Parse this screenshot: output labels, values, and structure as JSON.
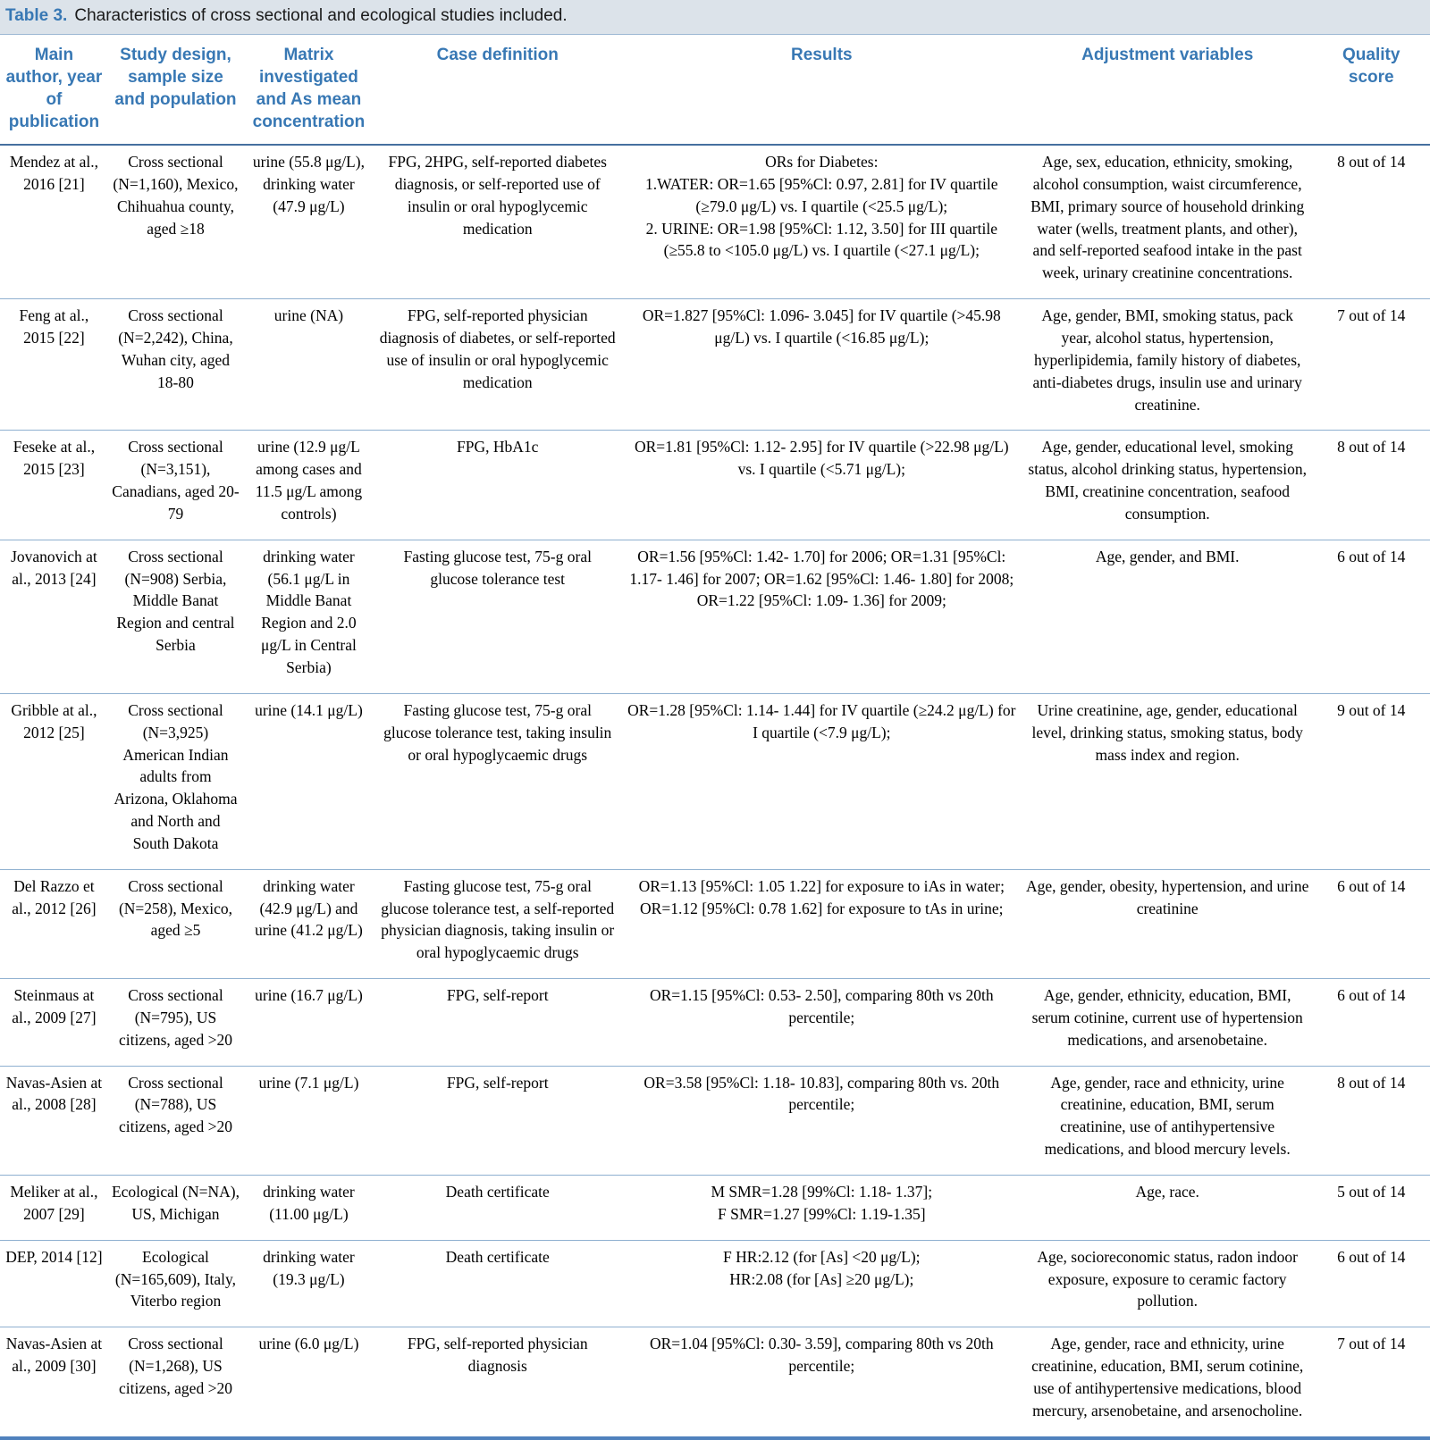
{
  "table": {
    "label": "Table 3.",
    "caption": "Characteristics of cross sectional and ecological studies included.",
    "fields": [
      "author",
      "design",
      "matrix",
      "case_definition",
      "results",
      "adjustment",
      "quality"
    ],
    "columns": [
      "Main author, year of publication",
      "Study design, sample size and population",
      "Matrix investigated and As mean concentration",
      "Case definition",
      "Results",
      "Adjustment variables",
      "Quality score"
    ],
    "rows": [
      {
        "author": "Mendez at al., 2016 [21]",
        "design": "Cross sectional (N=1,160), Mexico, Chihuahua county, aged ≥18",
        "matrix": "urine (55.8 μg/L), drinking water (47.9 μg/L)",
        "case_definition": "FPG, 2HPG, self-reported diabetes diagnosis, or self-reported use of insulin or oral hypoglycemic medication",
        "results": "ORs for Diabetes:\n1.WATER: OR=1.65 [95%Cl: 0.97, 2.81] for IV quartile (≥79.0 μg/L) vs. I quartile (<25.5 μg/L);\n2. URINE: OR=1.98 [95%Cl: 1.12, 3.50] for III quartile (≥55.8 to <105.0 μg/L) vs. I quartile (<27.1 μg/L);",
        "adjustment": "Age, sex, education, ethnicity, smoking, alcohol consumption, waist circumference, BMI, primary source of household drinking water (wells, treatment plants, and other), and self-reported seafood intake in the past week, urinary creatinine concentrations.",
        "quality": "8 out of 14"
      },
      {
        "author": "Feng at al., 2015 [22]",
        "design": "Cross sectional (N=2,242), China, Wuhan city, aged 18-80",
        "matrix": "urine (NA)",
        "case_definition": "FPG, self-reported physician diagnosis of diabetes, or self-reported use of insulin or oral hypoglycemic medication",
        "results": "OR=1.827 [95%Cl: 1.096- 3.045] for IV quartile (>45.98 μg/L) vs. I quartile (<16.85 μg/L);",
        "adjustment": "Age, gender, BMI, smoking status, pack year, alcohol status, hypertension, hyperlipidemia, family history of diabetes, anti-diabetes drugs, insulin use and urinary creatinine.",
        "quality": "7 out of 14"
      },
      {
        "author": "Feseke at al., 2015 [23]",
        "design": "Cross sectional (N=3,151), Canadians, aged 20-79",
        "matrix": "urine (12.9 μg/L among cases and 11.5 μg/L among controls)",
        "case_definition": "FPG, HbA1c",
        "results": "OR=1.81 [95%Cl: 1.12- 2.95] for IV quartile (>22.98 μg/L) vs. I quartile (<5.71 μg/L);",
        "adjustment": "Age, gender, educational level, smoking status, alcohol drinking status, hypertension, BMI, creatinine concentration, seafood consumption.",
        "quality": "8 out of 14"
      },
      {
        "author": "Jovanovich at al., 2013 [24]",
        "design": "Cross sectional (N=908) Serbia, Middle Banat Region and central Serbia",
        "matrix": "drinking water (56.1 μg/L in Middle Banat Region and 2.0 μg/L in Central Serbia)",
        "case_definition": "Fasting glucose test, 75-g oral glucose tolerance test",
        "results": "OR=1.56 [95%Cl: 1.42- 1.70] for 2006; OR=1.31 [95%Cl: 1.17- 1.46] for 2007; OR=1.62 [95%Cl: 1.46- 1.80] for 2008; OR=1.22 [95%Cl: 1.09- 1.36] for 2009;",
        "adjustment": "Age, gender, and BMI.",
        "quality": "6 out of 14"
      },
      {
        "author": "Gribble at al., 2012 [25]",
        "design": "Cross sectional (N=3,925) American Indian adults from Arizona, Oklahoma and North and South Dakota",
        "matrix": "urine (14.1 μg/L)",
        "case_definition": "Fasting glucose test, 75-g oral glucose tolerance test, taking insulin or oral hypoglycaemic drugs",
        "results": "OR=1.28 [95%Cl: 1.14- 1.44] for IV quartile (≥24.2 μg/L) for I quartile (<7.9 μg/L);",
        "adjustment": "Urine creatinine, age, gender, educational level, drinking status, smoking status, body mass index and region.",
        "quality": "9 out of 14"
      },
      {
        "author": "Del Razzo et al., 2012 [26]",
        "design": "Cross sectional (N=258), Mexico, aged ≥5",
        "matrix": "drinking water (42.9 μg/L) and urine (41.2 μg/L)",
        "case_definition": "Fasting glucose test, 75-g oral glucose tolerance test, a self-reported physician diagnosis, taking insulin or oral hypoglycaemic drugs",
        "results": "OR=1.13 [95%Cl: 1.05 1.22] for exposure to iAs in water;\nOR=1.12 [95%Cl: 0.78 1.62] for exposure to tAs in urine;",
        "adjustment": "Age, gender, obesity, hypertension, and urine creatinine",
        "quality": "6 out of 14"
      },
      {
        "author": "Steinmaus at al., 2009 [27]",
        "design": "Cross sectional (N=795), US citizens, aged >20",
        "matrix": "urine (16.7 μg/L)",
        "case_definition": "FPG, self-report",
        "results": "OR=1.15 [95%Cl: 0.53- 2.50], comparing 80th vs 20th percentile;",
        "adjustment": "Age, gender, ethnicity, education, BMI, serum cotinine, current use of hypertension medications, and arsenobetaine.",
        "quality": "6 out of 14"
      },
      {
        "author": "Navas-Asien at al., 2008 [28]",
        "design": "Cross sectional (N=788), US citizens, aged >20",
        "matrix": "urine (7.1 μg/L)",
        "case_definition": "FPG, self-report",
        "results": "OR=3.58 [95%Cl: 1.18- 10.83], comparing 80th vs. 20th percentile;",
        "adjustment": "Age, gender, race and ethnicity, urine creatinine, education, BMI, serum creatinine, use of antihypertensive medications, and blood mercury levels.",
        "quality": "8 out of 14"
      },
      {
        "author": "Meliker at al., 2007 [29]",
        "design": "Ecological (N=NA), US, Michigan",
        "matrix": "drinking water (11.00 μg/L)",
        "case_definition": "Death certificate",
        "results": "M SMR=1.28 [99%Cl: 1.18- 1.37];\nF SMR=1.27 [99%Cl: 1.19-1.35]",
        "adjustment": "Age, race.",
        "quality": "5 out of 14"
      },
      {
        "author": "DEP, 2014 [12]",
        "design": "Ecological (N=165,609), Italy, Viterbo region",
        "matrix": "drinking water (19.3 μg/L)",
        "case_definition": "Death certificate",
        "results": "F HR:2.12 (for [As] <20 μg/L);\nHR:2.08 (for [As] ≥20 μg/L);",
        "adjustment": "Age, socioreconomic status, radon indoor exposure, exposure to ceramic factory pollution.",
        "quality": "6 out of 14"
      },
      {
        "author": "Navas-Asien at al., 2009 [30]",
        "design": "Cross sectional (N=1,268), US citizens, aged >20",
        "matrix": "urine (6.0 μg/L)",
        "case_definition": "FPG, self-reported physician diagnosis",
        "results": "OR=1.04 [95%Cl: 0.30- 3.59], comparing 80th vs 20th percentile;",
        "adjustment": "Age, gender, race and ethnicity, urine creatinine, education, BMI, serum cotinine, use of antihypertensive medications, blood mercury, arsenobetaine, and arsenocholine.",
        "quality": "7 out of 14"
      }
    ]
  }
}
